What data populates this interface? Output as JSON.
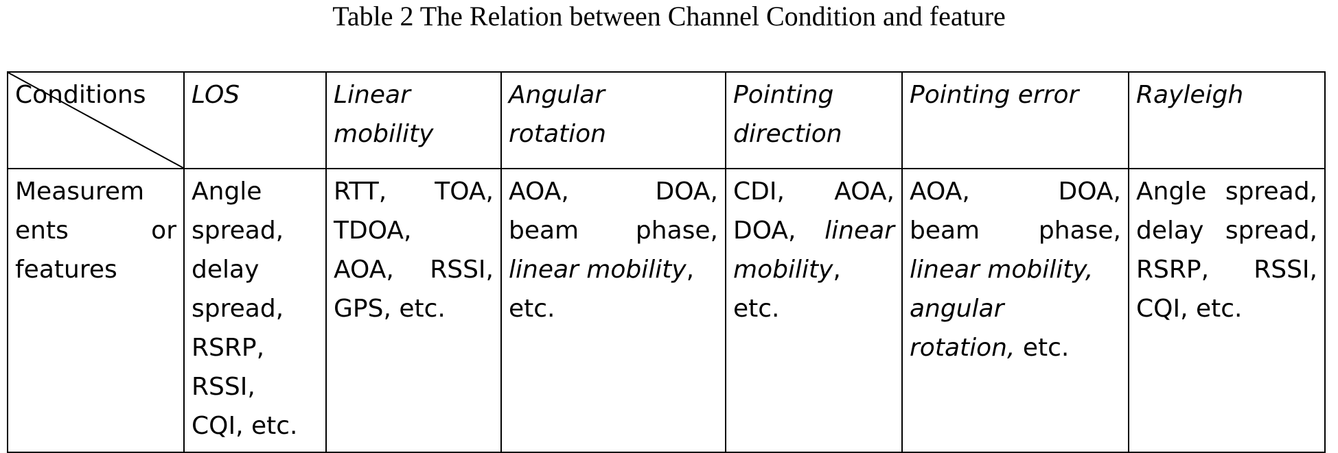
{
  "caption": "Table 2 The Relation between Channel Condition and feature",
  "table": {
    "header": {
      "corner": "Conditions",
      "col_los": "LOS",
      "col_linear_1": "Linear",
      "col_linear_2": "mobility",
      "col_angular_1": "Angular",
      "col_angular_2": "rotation",
      "col_pointdir_1": "Pointing",
      "col_pointdir_2": "direction",
      "col_pointerr": "Pointing error",
      "col_rayleigh": "Rayleigh"
    },
    "row": {
      "label": {
        "l1a": "Measurem",
        "l2a": "ents",
        "l2b": "or",
        "l3": "features"
      },
      "los": {
        "l1": "Angle",
        "l2": "spread,",
        "l3": "delay",
        "l4": "spread,",
        "l5": "RSRP,",
        "l6": "RSSI,",
        "l7": "CQI, etc."
      },
      "linear": {
        "l1a": "RTT,",
        "l1b": "TOA,",
        "l2": "TDOA,",
        "l3a": "AOA,",
        "l3b": "RSSI,",
        "l4": "GPS, etc."
      },
      "angular": {
        "l1a": "AOA,",
        "l1b": "DOA,",
        "l2a": "beam",
        "l2b": "phase,",
        "l3_it": "linear mobility",
        "l3_rest": ",",
        "l4": "etc."
      },
      "pointdir": {
        "l1a": "CDI,",
        "l1b": "AOA,",
        "l2a": "DOA,",
        "l2b_it": "linear",
        "l3_it": "mobility",
        "l3_rest": ",",
        "l4": "etc."
      },
      "pointerr": {
        "l1a": "AOA,",
        "l1b": "DOA,",
        "l2a": "beam",
        "l2b": "phase,",
        "l3_it": "linear mobility,",
        "l4_it": "angular",
        "l5_it": "rotation,",
        "l5_rest": " etc."
      },
      "rayleigh": {
        "l1a": "Angle",
        "l1b": "spread,",
        "l2a": "delay",
        "l2b": "spread,",
        "l3a": "RSRP,",
        "l3b": "RSSI,",
        "l4": "CQI, etc."
      }
    }
  }
}
